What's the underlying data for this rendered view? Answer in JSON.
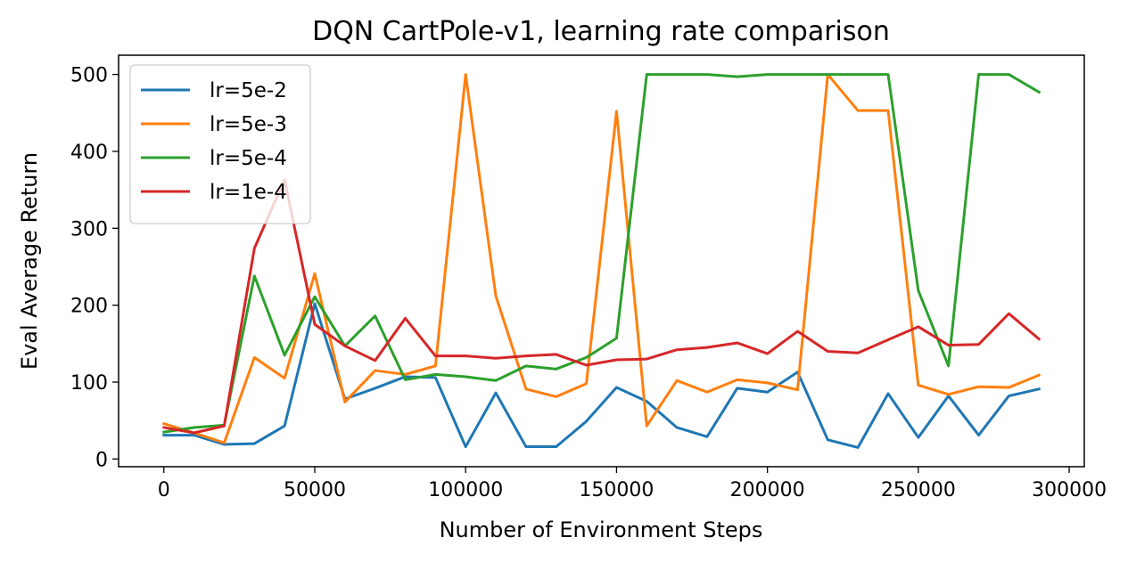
{
  "chart_data": {
    "type": "line",
    "title": "DQN CartPole-v1, learning rate comparison",
    "xlabel": "Number of Environment Steps",
    "ylabel": "Eval Average Return",
    "xlim": [
      -15000,
      305000
    ],
    "ylim": [
      -10,
      525
    ],
    "xticks": [
      0,
      50000,
      100000,
      150000,
      200000,
      250000,
      300000
    ],
    "xtick_labels": [
      "0",
      "50000",
      "100000",
      "150000",
      "200000",
      "250000",
      "300000"
    ],
    "yticks": [
      0,
      100,
      200,
      300,
      400,
      500
    ],
    "ytick_labels": [
      "0",
      "100",
      "200",
      "300",
      "400",
      "500"
    ],
    "grid": false,
    "legend_position": "top-left",
    "x": [
      0,
      10000,
      20000,
      30000,
      40000,
      50000,
      60000,
      70000,
      80000,
      90000,
      100000,
      110000,
      120000,
      130000,
      140000,
      150000,
      160000,
      170000,
      180000,
      190000,
      200000,
      210000,
      220000,
      230000,
      240000,
      250000,
      260000,
      270000,
      280000,
      290000
    ],
    "series": [
      {
        "name": "lr=5e-2",
        "color": "#1f77b4",
        "values": [
          31,
          31,
          19,
          20,
          43,
          202,
          78,
          92,
          107,
          106,
          16,
          86,
          16,
          16,
          49,
          93,
          75,
          41,
          29,
          92,
          87,
          113,
          25,
          15,
          85,
          28,
          82,
          31,
          82,
          91
        ]
      },
      {
        "name": "lr=5e-3",
        "color": "#ff7f0e",
        "values": [
          46,
          34,
          21,
          132,
          105,
          241,
          74,
          115,
          110,
          121,
          500,
          212,
          91,
          81,
          98,
          452,
          43,
          102,
          87,
          103,
          99,
          90,
          500,
          453,
          453,
          96,
          84,
          94,
          93,
          109
        ]
      },
      {
        "name": "lr=5e-4",
        "color": "#2ca02c",
        "values": [
          35,
          41,
          44,
          238,
          135,
          211,
          147,
          186,
          103,
          110,
          107,
          102,
          121,
          117,
          132,
          157,
          500,
          500,
          500,
          497,
          500,
          500,
          500,
          500,
          500,
          219,
          121,
          500,
          500,
          477
        ]
      },
      {
        "name": "lr=1e-4",
        "color": "#d62728",
        "values": [
          41,
          34,
          43,
          274,
          363,
          175,
          147,
          128,
          183,
          134,
          134,
          131,
          134,
          136,
          122,
          129,
          130,
          142,
          145,
          151,
          137,
          166,
          140,
          138,
          155,
          172,
          148,
          149,
          189,
          156
        ]
      }
    ]
  }
}
